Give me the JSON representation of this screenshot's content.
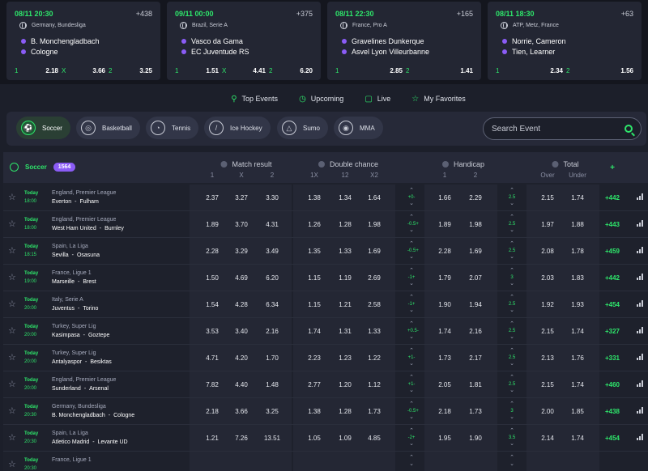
{
  "cards": [
    {
      "date": "08/11  20:30",
      "more": "+438",
      "league": "Germany, Bundesliga",
      "home": "B. Monchengladbach",
      "away": "Cologne",
      "odds": [
        {
          "label": "1",
          "value": "2.18"
        },
        {
          "label": "X",
          "value": "3.66"
        },
        {
          "label": "2",
          "value": "3.25"
        }
      ]
    },
    {
      "date": "09/11  00:00",
      "more": "+375",
      "league": "Brazil, Serie A",
      "home": "Vasco da Gama",
      "away": "EC Juventude RS",
      "odds": [
        {
          "label": "1",
          "value": "1.51"
        },
        {
          "label": "X",
          "value": "4.41"
        },
        {
          "label": "2",
          "value": "6.20"
        }
      ]
    },
    {
      "date": "08/11  22:30",
      "more": "+165",
      "league": "France, Pro A",
      "home": "Gravelines Dunkerque",
      "away": "Asvel Lyon Villeurbanne",
      "odds": [
        {
          "label": "1",
          "value": "2.85"
        },
        {
          "label": "2",
          "value": "1.41"
        }
      ]
    },
    {
      "date": "08/11  18:30",
      "more": "+63",
      "league": "ATP, Metz, France",
      "home": "Norrie, Cameron",
      "away": "Tien, Learner",
      "odds": [
        {
          "label": "1",
          "value": "2.34"
        },
        {
          "label": "2",
          "value": "1.56"
        }
      ]
    }
  ],
  "tabs": [
    {
      "label": "Top Events",
      "icon": "trophy-icon"
    },
    {
      "label": "Upcoming",
      "icon": "clock-icon"
    },
    {
      "label": "Live",
      "icon": "tv-icon"
    },
    {
      "label": "My Favorites",
      "icon": "star-icon"
    }
  ],
  "sports": [
    {
      "label": "Soccer",
      "icon": "soccer-ball-icon",
      "active": true
    },
    {
      "label": "Basketball",
      "icon": "basketball-icon",
      "active": false
    },
    {
      "label": "Tennis",
      "icon": "tennis-ball-icon",
      "active": false
    },
    {
      "label": "Ice Hockey",
      "icon": "hockey-stick-icon",
      "active": false
    },
    {
      "label": "Sumo",
      "icon": "sumo-icon",
      "active": false
    },
    {
      "label": "MMA",
      "icon": "glove-icon",
      "active": false
    }
  ],
  "search": {
    "placeholder": "Search Event"
  },
  "table": {
    "sport": "Soccer",
    "count": "1564",
    "groups": [
      {
        "title": "Match result",
        "subs": [
          "1",
          "X",
          "2"
        ]
      },
      {
        "title": "Double chance",
        "subs": [
          "1X",
          "12",
          "X2"
        ]
      },
      {
        "title": "Handicap",
        "subs": [
          "1",
          "2"
        ]
      },
      {
        "title": "Total",
        "subs": [
          "Over",
          "Under"
        ]
      }
    ],
    "plus_header": "+",
    "rows": [
      {
        "day": "Today",
        "time": "18:00",
        "league": "England, Premier League",
        "home": "Everton",
        "away": "Fulham",
        "mr": [
          "2.37",
          "3.27",
          "3.30"
        ],
        "dc": [
          "1.38",
          "1.34",
          "1.64"
        ],
        "hcap": "+0-",
        "h": [
          "1.66",
          "2.29"
        ],
        "tot": "2.5",
        "t": [
          "2.15",
          "1.74"
        ],
        "more": "+442"
      },
      {
        "day": "Today",
        "time": "18:00",
        "league": "England, Premier League",
        "home": "West Ham United",
        "away": "Burnley",
        "mr": [
          "1.89",
          "3.70",
          "4.31"
        ],
        "dc": [
          "1.26",
          "1.28",
          "1.98"
        ],
        "hcap": "-0.5+",
        "h": [
          "1.89",
          "1.98"
        ],
        "tot": "2.5",
        "t": [
          "1.97",
          "1.88"
        ],
        "more": "+443"
      },
      {
        "day": "Today",
        "time": "18:15",
        "league": "Spain, La Liga",
        "home": "Sevilla",
        "away": "Osasuna",
        "mr": [
          "2.28",
          "3.29",
          "3.49"
        ],
        "dc": [
          "1.35",
          "1.33",
          "1.69"
        ],
        "hcap": "-0.5+",
        "h": [
          "2.28",
          "1.69"
        ],
        "tot": "2.5",
        "t": [
          "2.08",
          "1.78"
        ],
        "more": "+459"
      },
      {
        "day": "Today",
        "time": "19:00",
        "league": "France, Ligue 1",
        "home": "Marseille",
        "away": "Brest",
        "mr": [
          "1.50",
          "4.69",
          "6.20"
        ],
        "dc": [
          "1.15",
          "1.19",
          "2.69"
        ],
        "hcap": "-1+",
        "h": [
          "1.79",
          "2.07"
        ],
        "tot": "3",
        "t": [
          "2.03",
          "1.83"
        ],
        "more": "+442"
      },
      {
        "day": "Today",
        "time": "20:00",
        "league": "Italy, Serie A",
        "home": "Juventus",
        "away": "Torino",
        "mr": [
          "1.54",
          "4.28",
          "6.34"
        ],
        "dc": [
          "1.15",
          "1.21",
          "2.58"
        ],
        "hcap": "-1+",
        "h": [
          "1.90",
          "1.94"
        ],
        "tot": "2.5",
        "t": [
          "1.92",
          "1.93"
        ],
        "more": "+454"
      },
      {
        "day": "Today",
        "time": "20:00",
        "league": "Turkey, Super Lig",
        "home": "Kasimpasa",
        "away": "Goztepe",
        "mr": [
          "3.53",
          "3.40",
          "2.16"
        ],
        "dc": [
          "1.74",
          "1.31",
          "1.33"
        ],
        "hcap": "+0.5-",
        "h": [
          "1.74",
          "2.16"
        ],
        "tot": "2.5",
        "t": [
          "2.15",
          "1.74"
        ],
        "more": "+327"
      },
      {
        "day": "Today",
        "time": "20:00",
        "league": "Turkey, Super Lig",
        "home": "Antalyaspor",
        "away": "Besiktas",
        "mr": [
          "4.71",
          "4.20",
          "1.70"
        ],
        "dc": [
          "2.23",
          "1.23",
          "1.22"
        ],
        "hcap": "+1-",
        "h": [
          "1.73",
          "2.17"
        ],
        "tot": "2.5",
        "t": [
          "2.13",
          "1.76"
        ],
        "more": "+331"
      },
      {
        "day": "Today",
        "time": "20:00",
        "league": "England, Premier League",
        "home": "Sunderland",
        "away": "Arsenal",
        "mr": [
          "7.82",
          "4.40",
          "1.48"
        ],
        "dc": [
          "2.77",
          "1.20",
          "1.12"
        ],
        "hcap": "+1-",
        "h": [
          "2.05",
          "1.81"
        ],
        "tot": "2.5",
        "t": [
          "2.15",
          "1.74"
        ],
        "more": "+460"
      },
      {
        "day": "Today",
        "time": "20:30",
        "league": "Germany, Bundesliga",
        "home": "B. Monchengladbach",
        "away": "Cologne",
        "mr": [
          "2.18",
          "3.66",
          "3.25"
        ],
        "dc": [
          "1.38",
          "1.28",
          "1.73"
        ],
        "hcap": "-0.5+",
        "h": [
          "2.18",
          "1.73"
        ],
        "tot": "3",
        "t": [
          "2.00",
          "1.85"
        ],
        "more": "+438"
      },
      {
        "day": "Today",
        "time": "20:30",
        "league": "Spain, La Liga",
        "home": "Atletico Madrid",
        "away": "Levante UD",
        "mr": [
          "1.21",
          "7.26",
          "13.51"
        ],
        "dc": [
          "1.05",
          "1.09",
          "4.85"
        ],
        "hcap": "-2+",
        "h": [
          "1.95",
          "1.90"
        ],
        "tot": "3.5",
        "t": [
          "2.14",
          "1.74"
        ],
        "more": "+454"
      },
      {
        "day": "Today",
        "time": "20:30",
        "league": "France, Ligue 1",
        "home": "",
        "away": "",
        "mr": [
          "",
          "",
          ""
        ],
        "dc": [
          "",
          "",
          ""
        ],
        "hcap": "",
        "h": [
          "",
          ""
        ],
        "tot": "",
        "t": [
          "",
          ""
        ],
        "more": ""
      }
    ]
  },
  "colors": {
    "accent": "#2ee66b",
    "badge": "#8b5cf6",
    "bg": "#1c1f2a"
  }
}
